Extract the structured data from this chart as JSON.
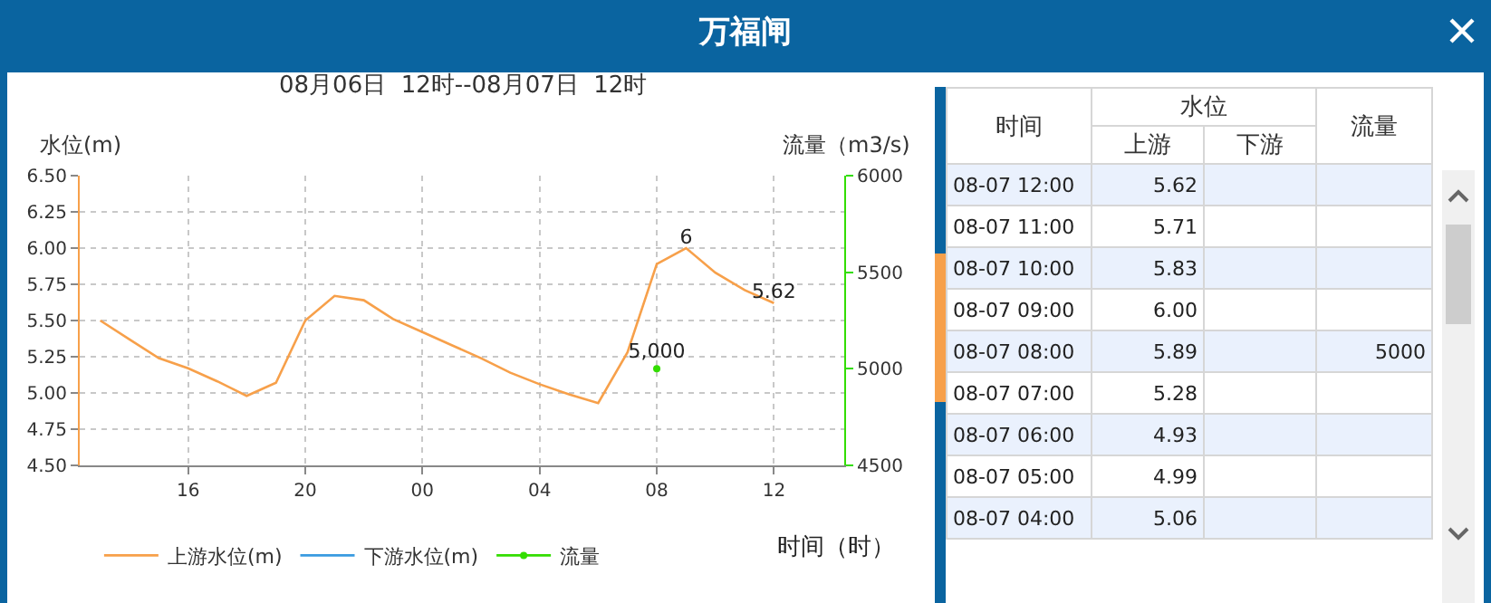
{
  "chart_data": [
    {
      "type": "line",
      "title": "万福闸",
      "subtitle": "08月06日  12时--08月07日  12时",
      "ylabel": "水位(m)",
      "y2label": "流量（m3/s)",
      "xlabel": "时间（时）",
      "x": [
        "--08-06T13:00",
        "--08-06T14:00",
        "--08-06T15:00",
        "--08-06T16:00",
        "--08-06T17:00",
        "--08-06T18:00",
        "--08-06T19:00",
        "--08-06T20:00",
        "--08-06T21:00",
        "--08-06T22:00",
        "--08-06T23:00",
        "--08-07T00:00",
        "--08-07T01:00",
        "--08-07T02:00",
        "--08-07T03:00",
        "--08-07T04:00",
        "--08-07T05:00",
        "--08-07T06:00",
        "--08-07T07:00",
        "--08-07T08:00",
        "--08-07T09:00",
        "--08-07T10:00",
        "--08-07T11:00",
        "--08-07T12:00"
      ],
      "xlim": [
        "--08-06T12:18",
        "--08-07T14:24"
      ],
      "xticks": [
        {
          "value": "--08-06T16:00",
          "label": "16"
        },
        {
          "value": "--08-06T20:00",
          "label": "20"
        },
        {
          "value": "--08-07T00:00",
          "label": "00"
        },
        {
          "value": "--08-07T04:00",
          "label": "04"
        },
        {
          "value": "--08-07T08:00",
          "label": "08"
        },
        {
          "value": "--08-07T12:00",
          "label": "12"
        }
      ],
      "ylim": [
        4.5,
        6.5
      ],
      "yticks": [
        {
          "value": 4.5,
          "label": "4.50"
        },
        {
          "value": 4.75,
          "label": "4.75"
        },
        {
          "value": 5,
          "label": "5.00"
        },
        {
          "value": 5.25,
          "label": "5.25"
        },
        {
          "value": 5.5,
          "label": "5.50"
        },
        {
          "value": 5.75,
          "label": "5.75"
        },
        {
          "value": 6,
          "label": "6.00"
        },
        {
          "value": 6.25,
          "label": "6.25"
        },
        {
          "value": 6.5,
          "label": "6.50"
        }
      ],
      "y2lim": [
        4500,
        6000
      ],
      "y2ticks": [
        4500,
        5000,
        5500,
        6000
      ],
      "grid": true,
      "legend": "bottom",
      "marker": "none",
      "line_style": "solid",
      "series": [
        {
          "name": "上游水位(m)",
          "color": "#f7a04a",
          "values": [
            5.5,
            5.37,
            5.24,
            5.17,
            5.08,
            4.98,
            5.07,
            5.5,
            5.67,
            5.64,
            5.51,
            5.42,
            5.33,
            5.24,
            5.14,
            5.06,
            4.99,
            4.93,
            5.28,
            5.89,
            6.0,
            5.83,
            5.71,
            5.62
          ],
          "value_labels": [
            null,
            null,
            null,
            null,
            null,
            null,
            null,
            null,
            null,
            null,
            null,
            null,
            null,
            null,
            null,
            null,
            null,
            null,
            null,
            null,
            "6",
            null,
            null,
            "5.62"
          ]
        },
        {
          "name": "下游水位(m)",
          "color": "#3a9be0",
          "values": [
            null,
            null,
            null,
            null,
            null,
            null,
            null,
            null,
            null,
            null,
            null,
            null,
            null,
            null,
            null,
            null,
            null,
            null,
            null,
            null,
            null,
            null,
            null,
            null
          ]
        },
        {
          "name": "流量",
          "color": "#33dd00",
          "axis": "y2",
          "marker": "circle",
          "values": [
            null,
            null,
            null,
            null,
            null,
            null,
            null,
            null,
            null,
            null,
            null,
            null,
            null,
            null,
            null,
            null,
            null,
            null,
            null,
            5000,
            null,
            null,
            null,
            null
          ],
          "value_labels": [
            null,
            null,
            null,
            null,
            null,
            null,
            null,
            null,
            null,
            null,
            null,
            null,
            null,
            null,
            null,
            null,
            null,
            null,
            null,
            "5,000",
            null,
            null,
            null,
            null
          ]
        }
      ]
    },
    {
      "type": "other",
      "annotations": [
        "时间",
        "水位"
      ],
      "categories": [
        "08-07 12:00",
        "08-07 11:00",
        "08-07 10:00",
        "08-07 09:00",
        "08-07 08:00",
        "08-07 07:00",
        "08-07 06:00",
        "08-07 05:00",
        "08-07 04:00"
      ],
      "series": [
        {
          "name": "上游",
          "values": [
            5.62,
            5.71,
            5.83,
            6.0,
            5.89,
            5.28,
            4.93,
            4.99,
            5.06
          ],
          "value_labels": [
            "5.62",
            "5.71",
            "5.83",
            "6.00",
            "5.89",
            "5.28",
            "4.93",
            "4.99",
            "5.06"
          ]
        },
        {
          "name": "下游",
          "values": [
            null,
            null,
            null,
            null,
            null,
            null,
            null,
            null,
            null
          ]
        },
        {
          "name": "流量",
          "values": [
            null,
            null,
            null,
            null,
            5000,
            null,
            null,
            null,
            null
          ],
          "value_labels": [
            null,
            null,
            null,
            null,
            "5000",
            null,
            null,
            null,
            null
          ]
        }
      ]
    }
  ]
}
